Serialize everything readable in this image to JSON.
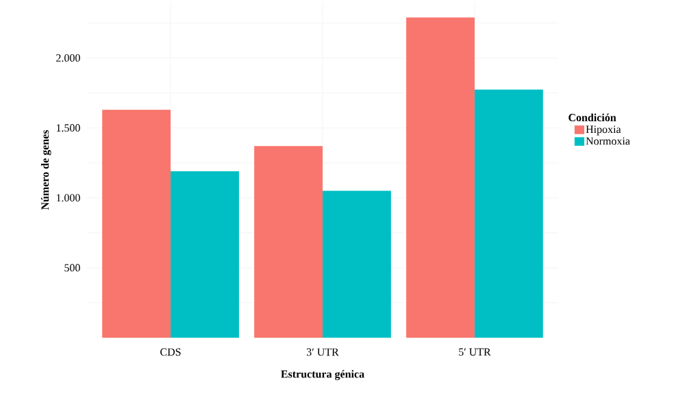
{
  "chart_data": {
    "type": "bar",
    "xlabel": "Estructura génica",
    "ylabel": "Número de genes",
    "legend_title": "Condición",
    "categories": [
      "CDS",
      "3′ UTR",
      "5′ UTR"
    ],
    "series": [
      {
        "name": "Hipoxia",
        "color": "#f8766d",
        "values": [
          1630,
          1370,
          2290
        ]
      },
      {
        "name": "Normoxia",
        "color": "#00bfc4",
        "values": [
          1190,
          1050,
          1775
        ]
      }
    ],
    "ylim": [
      0,
      2400
    ],
    "yticks": [
      {
        "value": 250,
        "label": null
      },
      500,
      {
        "value": 750,
        "label": null
      },
      {
        "value": 1000,
        "label": "1.000"
      },
      {
        "value": 1250,
        "label": null
      },
      {
        "value": 1500,
        "label": "1.500"
      },
      {
        "value": 1750,
        "label": null
      },
      {
        "value": 2000,
        "label": "2.000"
      },
      {
        "value": 2250,
        "label": null
      }
    ],
    "grid": true,
    "legend": "right"
  }
}
